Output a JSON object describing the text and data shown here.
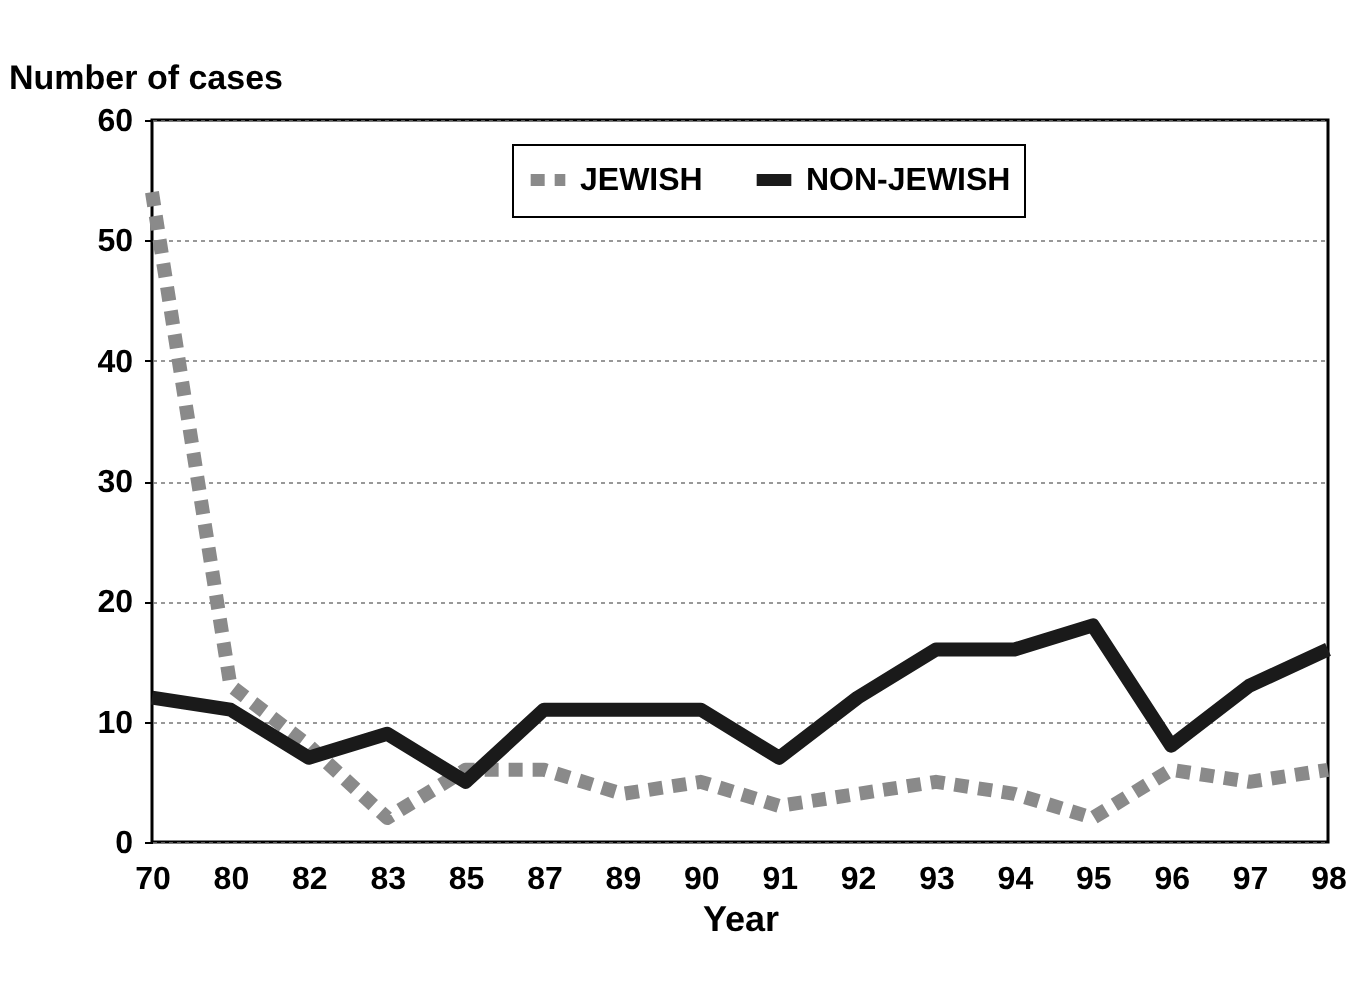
{
  "chart_data": {
    "type": "line",
    "xlabel": "Year",
    "ylabel": "Number of cases",
    "categories": [
      "70",
      "80",
      "82",
      "83",
      "85",
      "87",
      "89",
      "90",
      "91",
      "92",
      "93",
      "94",
      "95",
      "96",
      "97",
      "98"
    ],
    "series": [
      {
        "name": "JEWISH",
        "color": "#8a8a8a",
        "line_style": "dotted",
        "values": [
          54,
          13,
          8,
          2,
          6,
          6,
          4,
          5,
          3,
          4,
          5,
          4,
          2,
          6,
          5,
          6
        ]
      },
      {
        "name": "NON-JEWISH",
        "color": "#1a1a1a",
        "line_style": "solid",
        "values": [
          12,
          11,
          7,
          9,
          5,
          11,
          11,
          11,
          7,
          12,
          16,
          16,
          18,
          8,
          13,
          16
        ]
      }
    ],
    "ylim": [
      0,
      60
    ],
    "yticks": [
      0,
      10,
      20,
      30,
      40,
      50,
      60
    ],
    "grid": "y",
    "legend": "top"
  }
}
